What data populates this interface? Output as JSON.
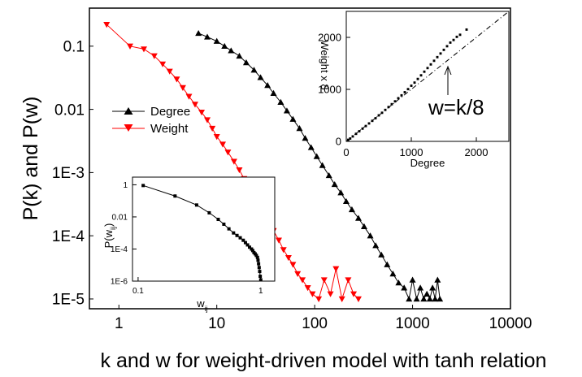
{
  "chart_data": [
    {
      "type": "scatter",
      "x_scale": "log",
      "y_scale": "log",
      "xlabel": "k and w for weight-driven model with tanh relation",
      "ylabel": "P(k) and P(w)",
      "xlim": [
        0.5,
        10000
      ],
      "ylim": [
        7e-06,
        0.4
      ],
      "x_ticks": [
        {
          "v": 1,
          "label": "1"
        },
        {
          "v": 10,
          "label": "10"
        },
        {
          "v": 100,
          "label": "100"
        },
        {
          "v": 1000,
          "label": "1000"
        },
        {
          "v": 10000,
          "label": "10000"
        }
      ],
      "y_ticks": [
        {
          "v": 1e-05,
          "label": "1E-5"
        },
        {
          "v": 0.0001,
          "label": "1E-4"
        },
        {
          "v": 0.001,
          "label": "1E-3"
        },
        {
          "v": 0.01,
          "label": "0.01"
        },
        {
          "v": 0.1,
          "label": "0.1"
        }
      ],
      "legend": "center-left",
      "series": [
        {
          "name": "Degree",
          "color": "#000000",
          "marker": "triangle-up",
          "x": [
            6.5,
            8,
            10,
            12,
            14,
            17,
            20,
            24,
            28,
            33,
            38,
            45,
            52,
            60,
            70,
            80,
            92,
            105,
            120,
            140,
            160,
            185,
            210,
            240,
            280,
            320,
            370,
            420,
            480,
            550,
            630,
            720,
            820,
            920,
            1000,
            1100,
            1200,
            1300,
            1400,
            1500,
            1600,
            1700,
            1800,
            1900
          ],
          "y": [
            0.16,
            0.14,
            0.12,
            0.1,
            0.085,
            0.07,
            0.055,
            0.042,
            0.032,
            0.024,
            0.018,
            0.013,
            0.0095,
            0.007,
            0.005,
            0.0035,
            0.0025,
            0.0018,
            0.0013,
            0.0009,
            0.00065,
            0.00048,
            0.00035,
            0.00026,
            0.00019,
            0.00014,
            0.0001,
            7e-05,
            5e-05,
            3.5e-05,
            2.5e-05,
            1.8e-05,
            1.5e-05,
            1e-05,
            2e-05,
            1e-05,
            1.5e-05,
            1e-05,
            1.2e-05,
            1e-05,
            1.5e-05,
            1e-05,
            2e-05,
            1e-05
          ]
        },
        {
          "name": "Weight",
          "color": "#ff0000",
          "marker": "triangle-down",
          "x": [
            0.75,
            1.3,
            1.8,
            2.3,
            2.8,
            3.3,
            3.9,
            4.5,
            5.2,
            6,
            7,
            8,
            9,
            10,
            11.5,
            13,
            15,
            17,
            19,
            21,
            24,
            27,
            30,
            34,
            38,
            43,
            48,
            54,
            60,
            67,
            75,
            85,
            95,
            110,
            125,
            145,
            165,
            190,
            220,
            250,
            280
          ],
          "y": [
            0.22,
            0.1,
            0.09,
            0.07,
            0.052,
            0.04,
            0.03,
            0.022,
            0.016,
            0.012,
            0.009,
            0.0068,
            0.005,
            0.0037,
            0.0028,
            0.0021,
            0.0015,
            0.0011,
            0.0008,
            0.0006,
            0.00042,
            0.0003,
            0.00022,
            0.00016,
            0.00012,
            8.5e-05,
            6e-05,
            4.5e-05,
            3.5e-05,
            2.5e-05,
            2e-05,
            1.5e-05,
            1.2e-05,
            1e-05,
            2e-05,
            1.2e-05,
            3e-05,
            1e-05,
            2e-05,
            1.2e-05,
            1e-05
          ]
        }
      ]
    },
    {
      "type": "scatter",
      "xlabel": "Degree",
      "ylabel": "Weight x 8",
      "xlim": [
        0,
        2500
      ],
      "ylim": [
        0,
        2500
      ],
      "x_ticks": [
        {
          "v": 0,
          "label": "0"
        },
        {
          "v": 1000,
          "label": "1000"
        },
        {
          "v": 2000,
          "label": "2000"
        }
      ],
      "y_ticks": [
        {
          "v": 0,
          "label": "0"
        },
        {
          "v": 1000,
          "label": "1000"
        },
        {
          "v": 2000,
          "label": "2000"
        }
      ],
      "annotations": [
        "w=k/8"
      ],
      "series": [
        {
          "color": "#000000",
          "marker": "square",
          "x": [
            30,
            60,
            100,
            150,
            200,
            250,
            300,
            350,
            400,
            450,
            500,
            550,
            600,
            650,
            700,
            750,
            800,
            850,
            900,
            950,
            1000,
            1050,
            1100,
            1150,
            1200,
            1250,
            1300,
            1350,
            1400,
            1450,
            1500,
            1550,
            1600,
            1650,
            1700,
            1750,
            1850
          ],
          "y": [
            30,
            55,
            95,
            145,
            195,
            245,
            295,
            345,
            395,
            445,
            500,
            550,
            605,
            660,
            715,
            770,
            830,
            885,
            945,
            1005,
            1070,
            1130,
            1200,
            1270,
            1340,
            1410,
            1480,
            1550,
            1620,
            1690,
            1760,
            1830,
            1900,
            1950,
            2010,
            2050,
            2150
          ]
        },
        {
          "color": "#000000",
          "style": "dash-dot",
          "x": [
            0,
            2500
          ],
          "y": [
            0,
            2500
          ]
        }
      ]
    },
    {
      "type": "line",
      "x_scale": "log",
      "y_scale": "log",
      "xlabel": "w",
      "xlabel_sub": "ij",
      "ylabel": "P(w",
      "ylabel_sub": "ij",
      "ylabel_end": ")",
      "xlim": [
        0.09,
        1.3
      ],
      "ylim": [
        1e-06,
        3
      ],
      "x_ticks": [
        {
          "v": 0.1,
          "label": "0.1"
        },
        {
          "v": 1,
          "label": "1"
        }
      ],
      "y_ticks": [
        {
          "v": 1e-06,
          "label": "1E-6"
        },
        {
          "v": 0.0001,
          "label": "1E-4"
        },
        {
          "v": 0.01,
          "label": "0.01"
        },
        {
          "v": 1,
          "label": "1"
        }
      ],
      "series": [
        {
          "color": "#000000",
          "marker": "square",
          "x": [
            0.11,
            0.2,
            0.3,
            0.38,
            0.45,
            0.5,
            0.55,
            0.6,
            0.64,
            0.68,
            0.72,
            0.75,
            0.78,
            0.81,
            0.84,
            0.86,
            0.88,
            0.9,
            0.92,
            0.94,
            0.95,
            0.96,
            0.97,
            0.98,
            0.99,
            1.0
          ],
          "y": [
            0.9,
            0.2,
            0.055,
            0.018,
            0.007,
            0.0035,
            0.0018,
            0.001,
            0.0007,
            0.0005,
            0.00035,
            0.00025,
            0.00018,
            0.00013,
            0.0001,
            8e-05,
            6e-05,
            5e-05,
            4e-05,
            3e-05,
            2e-05,
            1.2e-05,
            7e-06,
            4e-06,
            2e-06,
            1.2e-06
          ]
        }
      ]
    }
  ]
}
